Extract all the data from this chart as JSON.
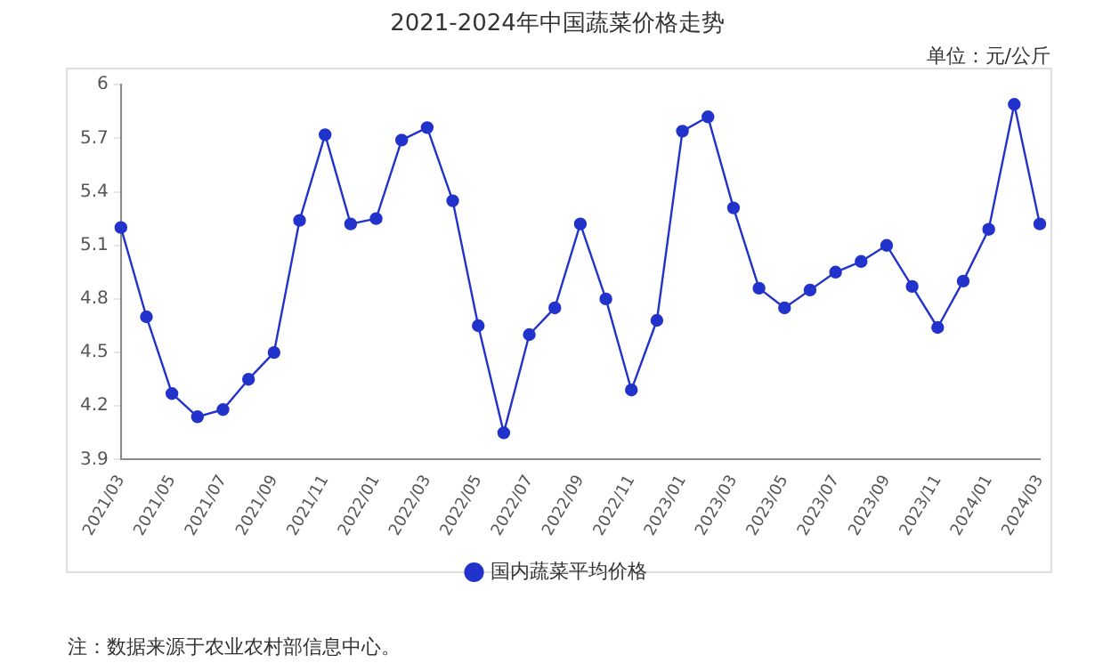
{
  "chart_data": {
    "type": "line",
    "title": "2021-2024年中国蔬菜价格走势",
    "annotations": [
      "单位：元/公斤",
      "注：数据来源于农业农村部信息中心。"
    ],
    "categories": [
      "2021/03",
      null,
      "2021/05",
      null,
      "2021/07",
      null,
      "2021/09",
      null,
      "2021/11",
      null,
      "2022/01",
      null,
      "2022/03",
      null,
      "2022/05",
      null,
      "2022/07",
      null,
      "2022/09",
      null,
      "2022/11",
      null,
      "2023/01",
      null,
      "2023/03",
      null,
      "2023/05",
      null,
      "2023/07",
      null,
      "2023/09",
      null,
      "2023/11",
      null,
      "2024/01",
      null,
      "2024/03"
    ],
    "series": [
      {
        "name": "国内蔬菜平均价格",
        "color": "#2233cc",
        "values": [
          5.2,
          4.7,
          4.27,
          4.14,
          4.18,
          4.35,
          4.5,
          5.24,
          5.72,
          5.22,
          5.25,
          5.69,
          5.76,
          5.35,
          4.65,
          4.05,
          4.6,
          4.75,
          5.22,
          4.8,
          4.29,
          4.68,
          5.74,
          5.82,
          5.31,
          4.86,
          4.75,
          4.85,
          4.95,
          5.01,
          5.1,
          4.87,
          4.64,
          4.9,
          5.19,
          5.89,
          5.22
        ]
      }
    ],
    "ylim": [
      3.9,
      6
    ],
    "yticks": [
      3.9,
      4.2,
      4.5,
      4.8,
      5.1,
      5.4,
      5.7,
      {
        "value": 6,
        "label": "6"
      }
    ],
    "legend": "bottom",
    "marker": "circle",
    "line_style": "solid"
  }
}
